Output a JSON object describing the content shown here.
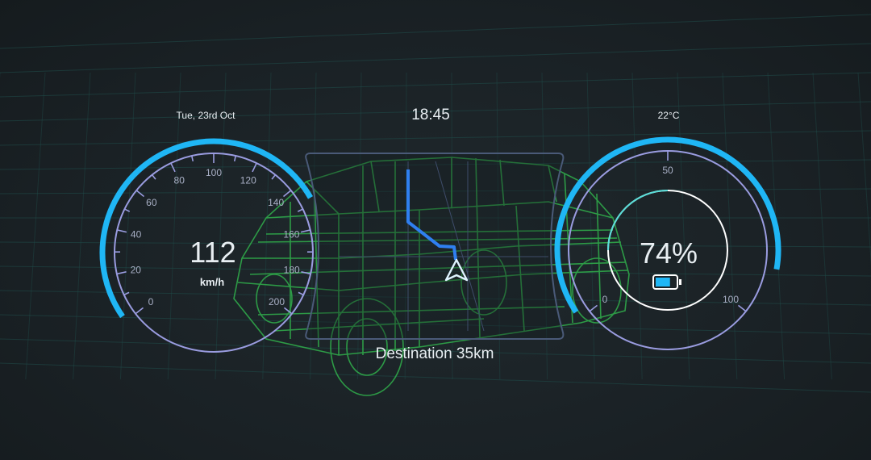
{
  "header": {
    "date": "Tue, 23rd Oct",
    "time": "18:45",
    "temperature": "22°C"
  },
  "speedometer": {
    "value": "112",
    "unit": "km/h",
    "ticks": [
      "0",
      "20",
      "40",
      "60",
      "80",
      "100",
      "120",
      "140",
      "160",
      "180",
      "200"
    ],
    "fill_value": 112
  },
  "battery": {
    "value": "74%",
    "level_percent": 74,
    "ticks": [
      "0",
      "50",
      "100"
    ],
    "icon": "battery-icon"
  },
  "navigation": {
    "destination": "Destination 35km",
    "icon": "navigation-arrow-icon"
  },
  "colors": {
    "accent": "#1fb6f5",
    "gauge_ring": "#9a9ce0",
    "wireframe": "#2fa84a",
    "route": "#2f7ff0"
  }
}
